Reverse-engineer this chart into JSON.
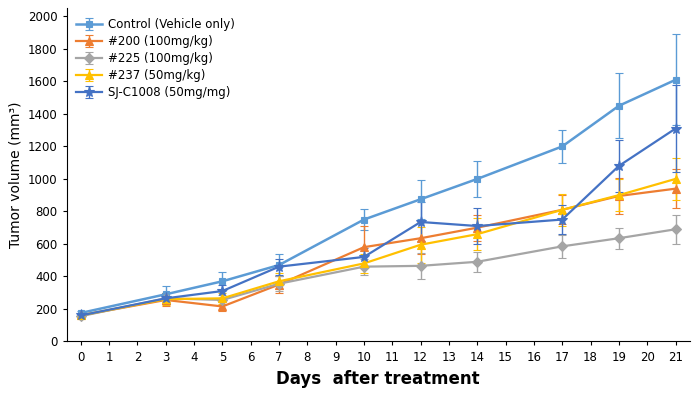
{
  "days": [
    0,
    3,
    5,
    7,
    10,
    12,
    14,
    17,
    19,
    21
  ],
  "series": [
    {
      "label": "Control (Vehicle only)",
      "color": "#5B9BD5",
      "marker": "s",
      "markersize": 5,
      "linestyle": "-",
      "linewidth": 1.8,
      "values": [
        175,
        290,
        370,
        470,
        750,
        875,
        1000,
        1200,
        1450,
        1610
      ],
      "errors": [
        12,
        50,
        60,
        70,
        65,
        120,
        110,
        100,
        200,
        280
      ]
    },
    {
      "label": "#200 (100mg/kg)",
      "color": "#ED7D31",
      "marker": "^",
      "markersize": 6,
      "linestyle": "-",
      "linewidth": 1.6,
      "values": [
        160,
        255,
        215,
        350,
        580,
        635,
        700,
        810,
        895,
        940
      ],
      "errors": [
        10,
        40,
        30,
        50,
        130,
        100,
        80,
        90,
        110,
        120
      ]
    },
    {
      "label": "#225 (100mg/kg)",
      "color": "#A5A5A5",
      "marker": "D",
      "markersize": 5,
      "linestyle": "-",
      "linewidth": 1.6,
      "values": [
        155,
        265,
        255,
        355,
        460,
        465,
        490,
        585,
        635,
        690
      ],
      "errors": [
        10,
        35,
        30,
        45,
        50,
        80,
        60,
        70,
        65,
        90
      ]
    },
    {
      "label": "#237 (50mg/kg)",
      "color": "#FFC000",
      "marker": "^",
      "markersize": 6,
      "linestyle": "-",
      "linewidth": 1.6,
      "values": [
        160,
        260,
        265,
        370,
        480,
        595,
        660,
        810,
        900,
        1000
      ],
      "errors": [
        10,
        35,
        35,
        50,
        60,
        110,
        100,
        100,
        100,
        130
      ]
    },
    {
      "label": "SJ-C1008 (50mg/mg)",
      "color": "#4472C4",
      "marker": "*",
      "markersize": 8,
      "linestyle": "-",
      "linewidth": 1.6,
      "values": [
        160,
        265,
        310,
        460,
        520,
        735,
        710,
        750,
        1080,
        1310
      ],
      "errors": [
        10,
        35,
        40,
        50,
        55,
        120,
        110,
        90,
        160,
        270
      ]
    }
  ],
  "xlabel": "Days  after treatment",
  "ylabel": "Tumor volume (mm³)",
  "ylim": [
    0,
    2050
  ],
  "yticks": [
    0,
    200,
    400,
    600,
    800,
    1000,
    1200,
    1400,
    1600,
    1800,
    2000
  ],
  "xticks": [
    0,
    1,
    2,
    3,
    4,
    5,
    6,
    7,
    8,
    9,
    10,
    11,
    12,
    13,
    14,
    15,
    16,
    17,
    18,
    19,
    20,
    21
  ],
  "background_color": "#FFFFFF",
  "legend_fontsize": 8.5,
  "xlabel_fontsize": 12,
  "ylabel_fontsize": 10,
  "tick_fontsize": 8.5
}
